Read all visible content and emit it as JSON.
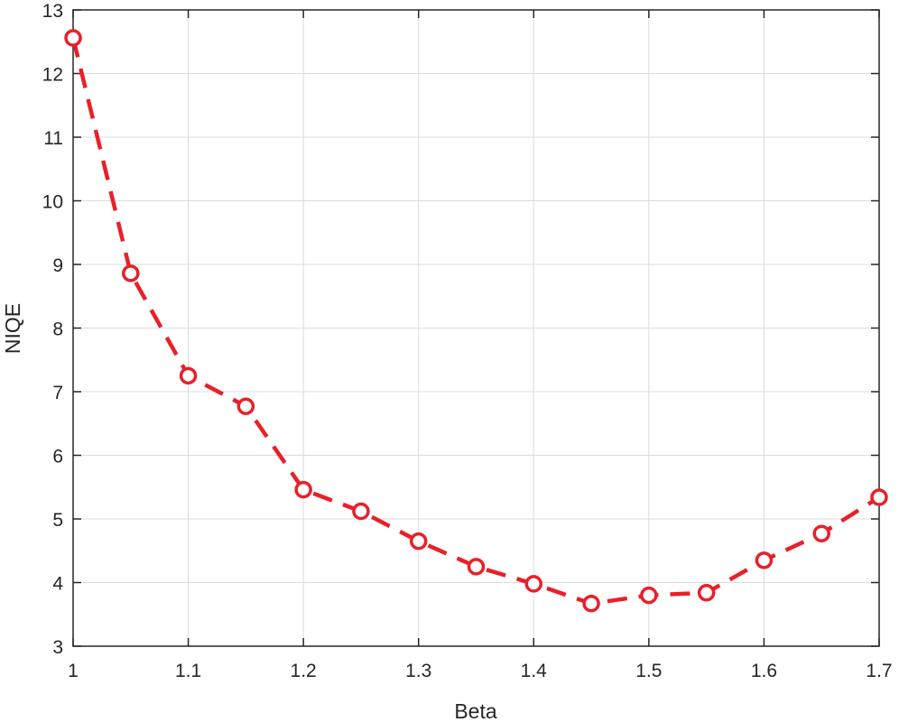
{
  "chart_data": {
    "type": "line",
    "title": "",
    "xlabel": "Beta",
    "ylabel": "NIQE",
    "xlim": [
      1,
      1.7
    ],
    "ylim": [
      3,
      13
    ],
    "xticks": [
      1,
      1.1,
      1.2,
      1.3,
      1.4,
      1.5,
      1.6,
      1.7
    ],
    "xtick_labels": [
      "1",
      "1.1",
      "1.2",
      "1.3",
      "1.4",
      "1.5",
      "1.6",
      "1.7"
    ],
    "yticks": [
      3,
      4,
      5,
      6,
      7,
      8,
      9,
      10,
      11,
      12,
      13
    ],
    "ytick_labels": [
      "3",
      "4",
      "5",
      "6",
      "7",
      "8",
      "9",
      "10",
      "11",
      "12",
      "13"
    ],
    "grid": true,
    "legend": "none",
    "series": [
      {
        "x": [
          1.0,
          1.05,
          1.1,
          1.15,
          1.2,
          1.25,
          1.3,
          1.35,
          1.4,
          1.45,
          1.5,
          1.55,
          1.6,
          1.65,
          1.7
        ],
        "y": [
          12.56,
          8.86,
          7.25,
          6.77,
          5.46,
          5.12,
          4.65,
          4.25,
          3.98,
          3.67,
          3.8,
          3.84,
          4.35,
          4.77,
          5.34
        ],
        "color": "#e8202a",
        "line_style": "dashed",
        "marker": "circle"
      }
    ]
  }
}
